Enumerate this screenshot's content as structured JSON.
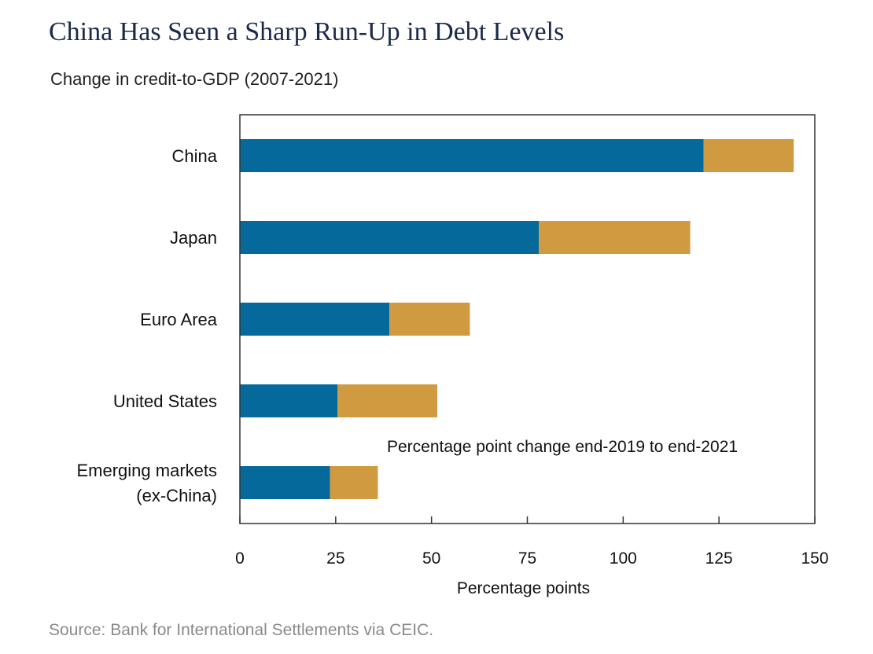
{
  "header": {
    "title": "China Has Seen a Sharp Run-Up in Debt Levels",
    "subtitle": "Change in credit-to-GDP (2007-2021)"
  },
  "footer": {
    "source": "Source: Bank for International Settlements via CEIC."
  },
  "chart_data": {
    "type": "bar",
    "orientation": "horizontal",
    "stacked": true,
    "categories": [
      [
        "China"
      ],
      [
        "Japan"
      ],
      [
        "Euro Area"
      ],
      [
        "United States"
      ],
      [
        "Emerging markets",
        "(ex-China)"
      ]
    ],
    "series": [
      {
        "color": "#06699b",
        "values": [
          121,
          78,
          39,
          25.5,
          23.5
        ]
      },
      {
        "name": "Percentage point change end-2019 to end-2021",
        "color": "#d09b40",
        "values": [
          23.5,
          39.5,
          21,
          26,
          12.5
        ]
      }
    ],
    "xlabel": "Percentage points",
    "xlim": [
      0,
      150
    ],
    "xticks": [
      0,
      25,
      50,
      75,
      100,
      125,
      150
    ],
    "grid": false,
    "annotation": {
      "text": "Percentage point change end-2019 to end-2021",
      "color": "#c4943a"
    }
  }
}
